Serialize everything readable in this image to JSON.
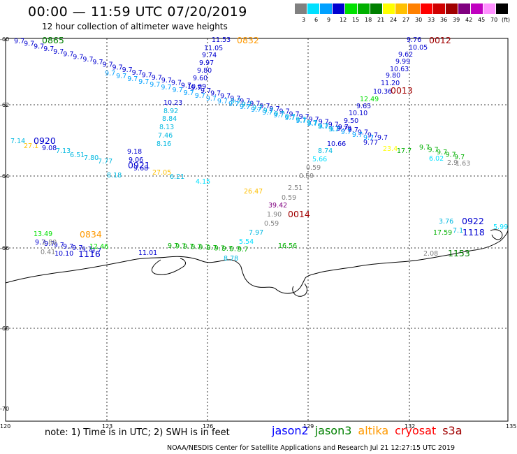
{
  "header": {
    "title": "00:00 — 11:59 UTC 07/20/2019",
    "subtitle": "12 hour collection of altimeter wave heights"
  },
  "color_scale": {
    "unit": "(ft)",
    "bins": [
      {
        "label": "3",
        "color": "#808080"
      },
      {
        "label": "6",
        "color": "#00e0ff"
      },
      {
        "label": "9",
        "color": "#00a0ff"
      },
      {
        "label": "12",
        "color": "#0000d0"
      },
      {
        "label": "15",
        "color": "#00e000"
      },
      {
        "label": "18",
        "color": "#00b000"
      },
      {
        "label": "21",
        "color": "#008000"
      },
      {
        "label": "24",
        "color": "#ffff00"
      },
      {
        "label": "27",
        "color": "#ffc000"
      },
      {
        "label": "30",
        "color": "#ff8000"
      },
      {
        "label": "33",
        "color": "#ff0000"
      },
      {
        "label": "36",
        "color": "#d00000"
      },
      {
        "label": "39",
        "color": "#a00000"
      },
      {
        "label": "42",
        "color": "#800080"
      },
      {
        "label": "45",
        "color": "#c000c0"
      },
      {
        "label": "70",
        "color": "#ff90ff"
      },
      {
        "label": "",
        "color": "#000000"
      }
    ]
  },
  "axes": {
    "longitude_ticks": [
      "120",
      "123",
      "126",
      "129",
      "132",
      "135"
    ],
    "latitude_ticks": [
      "-60",
      "-62",
      "-64",
      "-66",
      "-68",
      "-70"
    ]
  },
  "satellites": [
    {
      "name": "jason2",
      "color": "#0000ff"
    },
    {
      "name": "jason3",
      "color": "#008000"
    },
    {
      "name": "altika",
      "color": "#ff9900"
    },
    {
      "name": "cryosat",
      "color": "#ff0000"
    },
    {
      "name": "s3a",
      "color": "#a00000"
    }
  ],
  "pass_times": [
    {
      "text": "0865",
      "color": "#008000"
    },
    {
      "text": "0832",
      "color": "#ff9900"
    },
    {
      "text": "0012",
      "color": "#a00000"
    },
    {
      "text": "0013",
      "color": "#a00000"
    },
    {
      "text": "0920",
      "color": "#0000d0"
    },
    {
      "text": "0921",
      "color": "#0000d0"
    },
    {
      "text": "0014",
      "color": "#a00000"
    },
    {
      "text": "0834",
      "color": "#ff9900"
    },
    {
      "text": "1116",
      "color": "#0000d0"
    },
    {
      "text": "0922",
      "color": "#0000d0"
    },
    {
      "text": "1118",
      "color": "#0000d0"
    },
    {
      "text": "1153",
      "color": "#008000"
    }
  ],
  "wave_heights": [
    {
      "v": "11.53",
      "c": "#0000d0"
    },
    {
      "v": "11.05",
      "c": "#0000d0"
    },
    {
      "v": "9.74",
      "c": "#0000d0"
    },
    {
      "v": "9.97",
      "c": "#0000d0"
    },
    {
      "v": "9.80",
      "c": "#0000d0"
    },
    {
      "v": "9.60",
      "c": "#0000d0"
    },
    {
      "v": "10.09",
      "c": "#0000d0"
    },
    {
      "v": "9.76",
      "c": "#0000d0"
    },
    {
      "v": "10.05",
      "c": "#0000d0"
    },
    {
      "v": "9.62",
      "c": "#0000d0"
    },
    {
      "v": "9.99",
      "c": "#0000d0"
    },
    {
      "v": "10.63",
      "c": "#0000d0"
    },
    {
      "v": "9.80",
      "c": "#0000d0"
    },
    {
      "v": "11.20",
      "c": "#0000d0"
    },
    {
      "v": "10.36",
      "c": "#0000d0"
    },
    {
      "v": "12.49",
      "c": "#00e000"
    },
    {
      "v": "9.65",
      "c": "#0000d0"
    },
    {
      "v": "10.10",
      "c": "#0000d0"
    },
    {
      "v": "9.50",
      "c": "#0000d0"
    },
    {
      "v": "9.79",
      "c": "#0000d0"
    },
    {
      "v": "10.66",
      "c": "#0000d0"
    },
    {
      "v": "9.77",
      "c": "#0000d0"
    },
    {
      "v": "8.92",
      "c": "#00b8e0"
    },
    {
      "v": "8.84",
      "c": "#00b8e0"
    },
    {
      "v": "8.13",
      "c": "#00b8e0"
    },
    {
      "v": "7.46",
      "c": "#00b8e0"
    },
    {
      "v": "8.16",
      "c": "#00b8e0"
    },
    {
      "v": "9.18",
      "c": "#0000d0"
    },
    {
      "v": "9.06",
      "c": "#0000d0"
    },
    {
      "v": "9.68",
      "c": "#0000d0"
    },
    {
      "v": "10.23",
      "c": "#0000d0"
    },
    {
      "v": "7.14",
      "c": "#00b8e0"
    },
    {
      "v": "27.1",
      "c": "#ffc000"
    },
    {
      "v": "9.08",
      "c": "#0000d0"
    },
    {
      "v": "7.13",
      "c": "#00b8e0"
    },
    {
      "v": "6.51",
      "c": "#00b8e0"
    },
    {
      "v": "7.80",
      "c": "#00b8e0"
    },
    {
      "v": "7.77",
      "c": "#00b8e0"
    },
    {
      "v": "8.18",
      "c": "#00b8e0"
    },
    {
      "v": "27.05",
      "c": "#ffc000"
    },
    {
      "v": "6.21",
      "c": "#00b8e0"
    },
    {
      "v": "4.15",
      "c": "#00e0ff"
    },
    {
      "v": "8.74",
      "c": "#00b8e0"
    },
    {
      "v": "5.66",
      "c": "#00e0ff"
    },
    {
      "v": "0.59",
      "c": "#808080"
    },
    {
      "v": "0.59",
      "c": "#808080"
    },
    {
      "v": "2.51",
      "c": "#808080"
    },
    {
      "v": "0.59",
      "c": "#808080"
    },
    {
      "v": "26.47",
      "c": "#ffc000"
    },
    {
      "v": "39.42",
      "c": "#800080"
    },
    {
      "v": "1.90",
      "c": "#808080"
    },
    {
      "v": "0.59",
      "c": "#808080"
    },
    {
      "v": "7.97",
      "c": "#00b8e0"
    },
    {
      "v": "5.54",
      "c": "#00e0ff"
    },
    {
      "v": "16.56",
      "c": "#00b000"
    },
    {
      "v": "8.78",
      "c": "#00b8e0"
    },
    {
      "v": "23.4",
      "c": "#ffff00"
    },
    {
      "v": "17.7",
      "c": "#00b000"
    },
    {
      "v": "6.02",
      "c": "#00e0ff"
    },
    {
      "v": "2.9",
      "c": "#808080"
    },
    {
      "v": "1.63",
      "c": "#808080"
    },
    {
      "v": "13.49",
      "c": "#00e000"
    },
    {
      "v": "2.80",
      "c": "#808080"
    },
    {
      "v": "0.41",
      "c": "#808080"
    },
    {
      "v": "10.10",
      "c": "#0000d0"
    },
    {
      "v": "12.46",
      "c": "#00e000"
    },
    {
      "v": "11.01",
      "c": "#0000d0"
    },
    {
      "v": "3.76",
      "c": "#00b8e0"
    },
    {
      "v": "5.99",
      "c": "#00e0ff"
    },
    {
      "v": "17.59",
      "c": "#00b000"
    },
    {
      "v": "2.08",
      "c": "#808080"
    },
    {
      "v": "7.1",
      "c": "#00b8e0"
    }
  ],
  "note": "note: 1) Time is in UTC; 2) SWH is in feet",
  "footer": "NOAA/NESDIS Center for Satellite Applications and Research    Jul 21 12:27:15 UTC 2019"
}
